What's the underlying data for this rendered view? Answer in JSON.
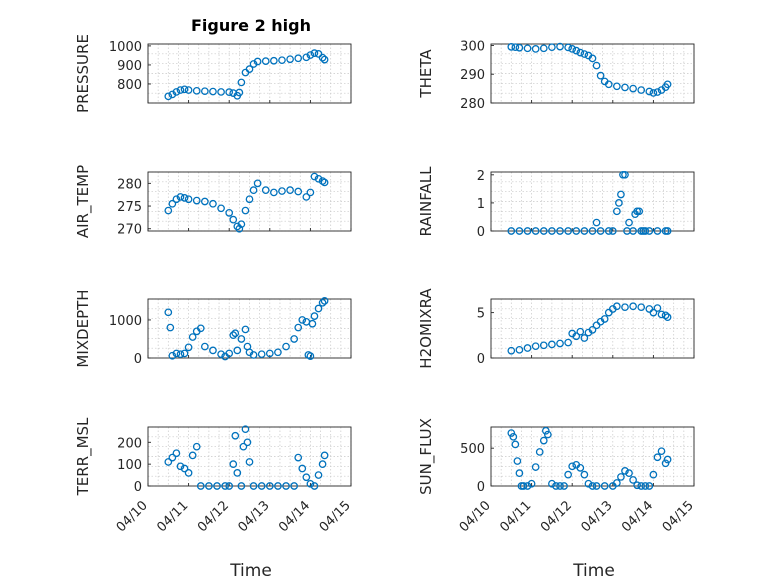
{
  "figure": {
    "title": "Figure 2 high",
    "xlabel": "Time",
    "x_tick_labels": [
      "04/10",
      "04/11",
      "04/12",
      "04/13",
      "04/14",
      "04/15"
    ],
    "colors": {
      "marker": "#0072BD",
      "axis": "#262626",
      "grid": "#c8c8c8"
    }
  },
  "chart_data": [
    {
      "id": "pressure",
      "type": "scatter",
      "title": "Figure 2 high",
      "ylabel": "PRESSURE",
      "xlim": [
        0,
        5
      ],
      "ylim": [
        700,
        1010
      ],
      "yticks": [
        800,
        900,
        1000
      ],
      "grid": true,
      "x": [
        0.5,
        0.6,
        0.7,
        0.8,
        0.9,
        1.0,
        1.2,
        1.4,
        1.6,
        1.8,
        2.0,
        2.1,
        2.2,
        2.25,
        2.3,
        2.4,
        2.5,
        2.6,
        2.7,
        2.9,
        3.1,
        3.3,
        3.5,
        3.7,
        3.9,
        4.0,
        4.1,
        4.2,
        4.3,
        4.35
      ],
      "y": [
        735,
        745,
        758,
        768,
        772,
        768,
        764,
        762,
        760,
        758,
        757,
        752,
        738,
        755,
        808,
        860,
        878,
        905,
        918,
        920,
        922,
        925,
        930,
        935,
        940,
        952,
        962,
        958,
        938,
        928
      ]
    },
    {
      "id": "theta",
      "type": "scatter",
      "ylabel": "THETA",
      "xlim": [
        0,
        5
      ],
      "ylim": [
        280,
        300.5
      ],
      "yticks": [
        280,
        290,
        300
      ],
      "grid": true,
      "x": [
        0.5,
        0.6,
        0.7,
        0.9,
        1.1,
        1.3,
        1.5,
        1.7,
        1.9,
        2.0,
        2.1,
        2.2,
        2.3,
        2.4,
        2.5,
        2.6,
        2.7,
        2.8,
        2.9,
        3.1,
        3.3,
        3.5,
        3.7,
        3.9,
        4.0,
        4.1,
        4.2,
        4.3,
        4.35
      ],
      "y": [
        299.5,
        299.4,
        299.2,
        299.0,
        298.8,
        299.0,
        299.4,
        299.6,
        299.3,
        298.8,
        298.2,
        297.5,
        297.0,
        296.5,
        295.5,
        293.0,
        289.5,
        287.5,
        286.5,
        285.8,
        285.4,
        285.0,
        284.5,
        284.0,
        283.5,
        283.8,
        284.5,
        285.5,
        286.5
      ]
    },
    {
      "id": "air_temp",
      "type": "scatter",
      "ylabel": "AIR_TEMP",
      "xlim": [
        0,
        5
      ],
      "ylim": [
        269.5,
        282.5
      ],
      "yticks": [
        270,
        275,
        280
      ],
      "grid": true,
      "x": [
        0.5,
        0.6,
        0.7,
        0.8,
        0.9,
        1.0,
        1.2,
        1.4,
        1.6,
        1.8,
        2.0,
        2.1,
        2.2,
        2.25,
        2.3,
        2.4,
        2.5,
        2.6,
        2.7,
        2.9,
        3.1,
        3.3,
        3.5,
        3.7,
        3.9,
        4.0,
        4.1,
        4.2,
        4.3,
        4.35
      ],
      "y": [
        274.0,
        275.5,
        276.5,
        277.0,
        276.8,
        276.5,
        276.2,
        276.0,
        275.5,
        274.5,
        273.5,
        272.0,
        270.5,
        270.0,
        271.0,
        274.0,
        276.5,
        278.5,
        280.0,
        278.5,
        278.0,
        278.3,
        278.5,
        278.2,
        277.0,
        278.0,
        281.5,
        281.0,
        280.5,
        280.2
      ]
    },
    {
      "id": "rainfall",
      "type": "scatter",
      "ylabel": "RAINFALL",
      "xlim": [
        0,
        5
      ],
      "ylim": [
        0,
        2.1
      ],
      "yticks": [
        0,
        1,
        2
      ],
      "grid": true,
      "x": [
        0.5,
        0.7,
        0.9,
        1.1,
        1.3,
        1.5,
        1.7,
        1.9,
        2.1,
        2.3,
        2.5,
        2.6,
        2.7,
        2.9,
        3.0,
        3.1,
        3.15,
        3.2,
        3.25,
        3.3,
        3.35,
        3.4,
        3.5,
        3.55,
        3.6,
        3.65,
        3.7,
        3.75,
        3.8,
        3.9,
        4.1,
        4.3,
        4.35
      ],
      "y": [
        0,
        0,
        0,
        0,
        0,
        0,
        0,
        0,
        0,
        0,
        0,
        0.3,
        0,
        0,
        0,
        0.7,
        1.0,
        1.3,
        2.0,
        2.0,
        0,
        0.3,
        0,
        0.6,
        0.7,
        0.7,
        0,
        0,
        0,
        0,
        0,
        0,
        0
      ]
    },
    {
      "id": "mixdepth",
      "type": "scatter",
      "ylabel": "MIXDEPTH",
      "xlim": [
        0,
        5
      ],
      "ylim": [
        0,
        1550
      ],
      "yticks": [
        0,
        1000
      ],
      "grid": true,
      "x": [
        0.5,
        0.55,
        0.6,
        0.7,
        0.8,
        0.9,
        1.0,
        1.1,
        1.2,
        1.3,
        1.4,
        1.6,
        1.8,
        1.9,
        2.0,
        2.1,
        2.15,
        2.2,
        2.3,
        2.4,
        2.45,
        2.5,
        2.6,
        2.8,
        3.0,
        3.2,
        3.4,
        3.6,
        3.7,
        3.8,
        3.9,
        3.95,
        4.0,
        4.05,
        4.1,
        4.2,
        4.3,
        4.35
      ],
      "y": [
        1200,
        800,
        60,
        120,
        100,
        120,
        280,
        550,
        700,
        780,
        300,
        200,
        100,
        40,
        120,
        600,
        650,
        200,
        500,
        750,
        300,
        150,
        80,
        100,
        120,
        150,
        300,
        500,
        800,
        1000,
        950,
        80,
        50,
        900,
        1100,
        1300,
        1450,
        1500
      ]
    },
    {
      "id": "h2omixra",
      "type": "scatter",
      "ylabel": "H2OMIXRA",
      "xlim": [
        0,
        5
      ],
      "ylim": [
        0,
        6.5
      ],
      "yticks": [
        0,
        5
      ],
      "grid": true,
      "x": [
        0.5,
        0.7,
        0.9,
        1.1,
        1.3,
        1.5,
        1.7,
        1.9,
        2.0,
        2.1,
        2.2,
        2.3,
        2.4,
        2.5,
        2.6,
        2.7,
        2.8,
        2.9,
        3.0,
        3.1,
        3.3,
        3.5,
        3.7,
        3.9,
        4.0,
        4.1,
        4.2,
        4.3,
        4.35
      ],
      "y": [
        0.8,
        0.9,
        1.1,
        1.3,
        1.4,
        1.5,
        1.6,
        1.7,
        2.7,
        2.4,
        2.9,
        2.2,
        2.8,
        3.1,
        3.6,
        4.0,
        4.3,
        5.0,
        5.4,
        5.7,
        5.6,
        5.7,
        5.6,
        5.4,
        5.0,
        5.5,
        4.8,
        4.7,
        4.5
      ]
    },
    {
      "id": "terr_msl",
      "type": "scatter",
      "ylabel": "TERR_MSL",
      "xlim": [
        0,
        5
      ],
      "ylim": [
        0,
        270
      ],
      "yticks": [
        0,
        100,
        200
      ],
      "grid": true,
      "x": [
        0.5,
        0.6,
        0.7,
        0.8,
        0.9,
        1.0,
        1.1,
        1.2,
        1.3,
        1.5,
        1.7,
        1.9,
        2.0,
        2.1,
        2.15,
        2.2,
        2.3,
        2.35,
        2.4,
        2.45,
        2.5,
        2.6,
        2.8,
        3.0,
        3.2,
        3.4,
        3.6,
        3.7,
        3.8,
        3.9,
        4.0,
        4.1,
        4.2,
        4.3,
        4.35
      ],
      "y": [
        110,
        130,
        150,
        90,
        80,
        60,
        140,
        180,
        0,
        0,
        0,
        0,
        0,
        100,
        230,
        60,
        0,
        180,
        260,
        200,
        110,
        0,
        0,
        0,
        0,
        0,
        0,
        130,
        80,
        40,
        10,
        0,
        50,
        100,
        140
      ]
    },
    {
      "id": "sun_flux",
      "type": "scatter",
      "ylabel": "SUN_FLUX",
      "xlim": [
        0,
        5
      ],
      "ylim": [
        0,
        780
      ],
      "yticks": [
        0,
        500
      ],
      "grid": true,
      "x": [
        0.5,
        0.55,
        0.6,
        0.65,
        0.7,
        0.75,
        0.8,
        0.9,
        1.0,
        1.1,
        1.2,
        1.3,
        1.35,
        1.4,
        1.5,
        1.6,
        1.7,
        1.8,
        1.9,
        2.0,
        2.1,
        2.2,
        2.3,
        2.4,
        2.5,
        2.6,
        2.8,
        3.0,
        3.1,
        3.2,
        3.3,
        3.4,
        3.5,
        3.6,
        3.7,
        3.8,
        3.9,
        4.0,
        4.1,
        4.2,
        4.3,
        4.35
      ],
      "y": [
        700,
        650,
        550,
        330,
        170,
        0,
        0,
        0,
        30,
        250,
        450,
        600,
        730,
        680,
        30,
        0,
        0,
        0,
        150,
        260,
        280,
        240,
        150,
        30,
        0,
        0,
        0,
        0,
        40,
        120,
        200,
        170,
        80,
        10,
        0,
        0,
        0,
        150,
        380,
        460,
        300,
        350
      ]
    }
  ]
}
